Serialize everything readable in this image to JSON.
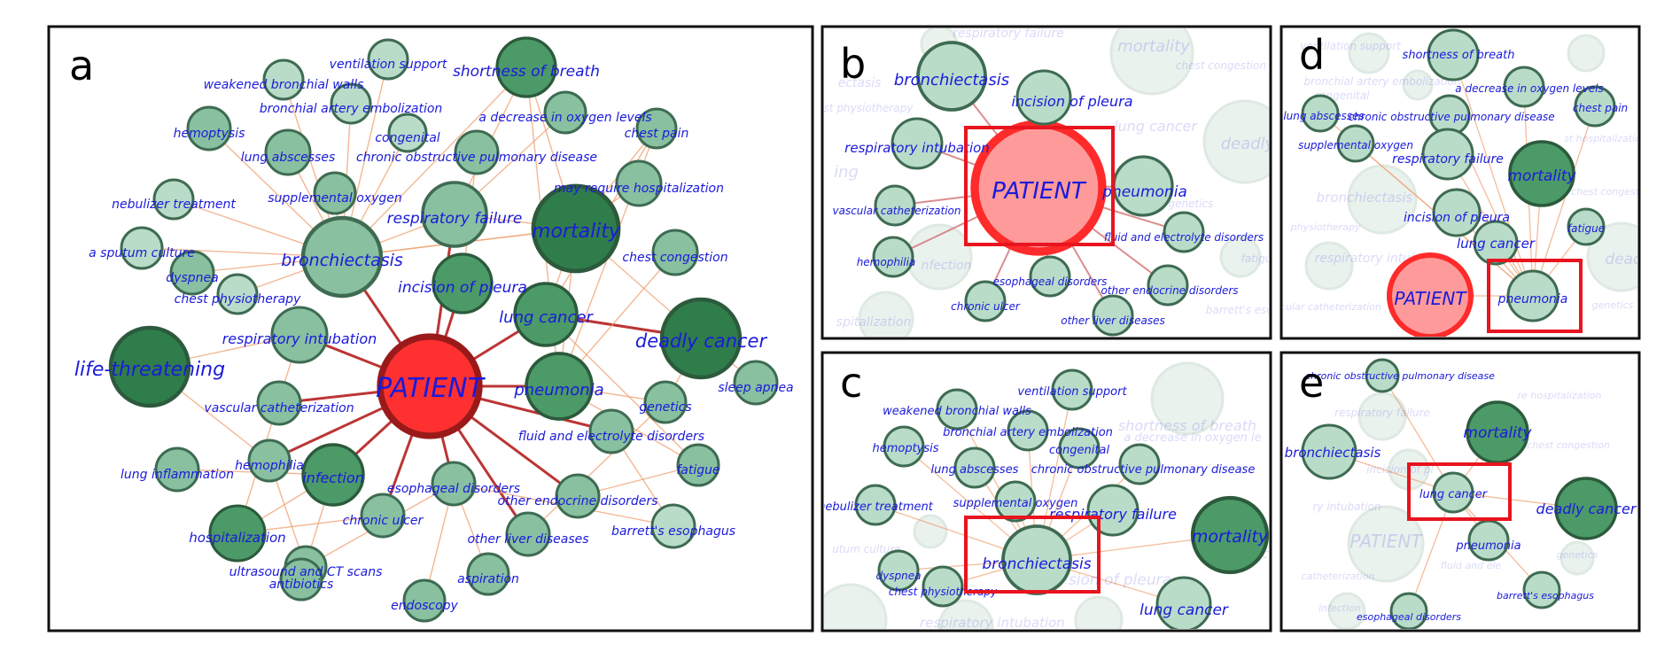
{
  "colors": {
    "label": "#1a1adb",
    "node_fill_light": "#b8dcc8",
    "node_fill_mid": "#88c0a0",
    "node_fill_dark": "#4b9a68",
    "node_fill_darkest": "#2f7d4a",
    "node_stroke": "#3e6b52",
    "patient_fill": "#ff3030",
    "patient_stroke": "#9a1a1a",
    "edge_strong": "#b52020",
    "edge_weak": "#f0a070",
    "highlight_box": "#e8141e"
  },
  "panels": [
    {
      "letter": "a",
      "nodes": [
        {
          "label": "PATIENT",
          "tone": "patient"
        },
        {
          "label": "life-threatening",
          "tone": "darkest"
        },
        {
          "label": "deadly cancer",
          "tone": "darkest"
        },
        {
          "label": "mortality",
          "tone": "darkest"
        },
        {
          "label": "bronchiectasis",
          "tone": "mid"
        },
        {
          "label": "shortness of breath",
          "tone": "dark"
        },
        {
          "label": "respiratory failure",
          "tone": "mid"
        },
        {
          "label": "incision of pleura",
          "tone": "dark"
        },
        {
          "label": "lung cancer",
          "tone": "dark"
        },
        {
          "label": "pneumonia",
          "tone": "dark"
        },
        {
          "label": "respiratory intubation",
          "tone": "mid"
        },
        {
          "label": "infection",
          "tone": "dark"
        },
        {
          "label": "hospitalization",
          "tone": "dark"
        },
        {
          "label": "ventilation support",
          "tone": "light"
        },
        {
          "label": "weakened bronchial walls",
          "tone": "light"
        },
        {
          "label": "bronchial artery embolization",
          "tone": "light"
        },
        {
          "label": "a decrease in oxygen levels",
          "tone": "mid"
        },
        {
          "label": "chest pain",
          "tone": "mid"
        },
        {
          "label": "hemoptysis",
          "tone": "mid"
        },
        {
          "label": "lung abscesses",
          "tone": "mid"
        },
        {
          "label": "congenital",
          "tone": "light"
        },
        {
          "label": "chronic obstructive pulmonary disease",
          "tone": "mid"
        },
        {
          "label": "may require hospitalization",
          "tone": "mid"
        },
        {
          "label": "nebulizer treatment",
          "tone": "light"
        },
        {
          "label": "supplemental oxygen",
          "tone": "mid"
        },
        {
          "label": "a sputum culture",
          "tone": "light"
        },
        {
          "label": "chest congestion",
          "tone": "mid"
        },
        {
          "label": "dyspnea",
          "tone": "mid"
        },
        {
          "label": "chest physiotherapy",
          "tone": "light"
        },
        {
          "label": "sleep apnea",
          "tone": "mid"
        },
        {
          "label": "genetics",
          "tone": "mid"
        },
        {
          "label": "vascular catheterization",
          "tone": "mid"
        },
        {
          "label": "fluid and electrolyte disorders",
          "tone": "mid"
        },
        {
          "label": "fatigue",
          "tone": "mid"
        },
        {
          "label": "lung inflammation",
          "tone": "mid"
        },
        {
          "label": "hemophilia",
          "tone": "mid"
        },
        {
          "label": "esophageal disorders",
          "tone": "mid"
        },
        {
          "label": "other endocrine disorders",
          "tone": "mid"
        },
        {
          "label": "chronic ulcer",
          "tone": "mid"
        },
        {
          "label": "barrett's esophagus",
          "tone": "light"
        },
        {
          "label": "other liver diseases",
          "tone": "mid"
        },
        {
          "label": "ultrasound and CT scans",
          "tone": "mid"
        },
        {
          "label": "antibiotics",
          "tone": "mid"
        },
        {
          "label": "aspiration",
          "tone": "mid"
        },
        {
          "label": "endoscopy",
          "tone": "mid"
        }
      ]
    },
    {
      "letter": "b",
      "highlight": "PATIENT",
      "nodes": [
        {
          "label": "PATIENT",
          "tone": "patient"
        },
        {
          "label": "bronchiectasis",
          "tone": "light"
        },
        {
          "label": "incision of pleura",
          "tone": "light"
        },
        {
          "label": "respiratory intubation",
          "tone": "light"
        },
        {
          "label": "pneumonia",
          "tone": "light"
        },
        {
          "label": "vascular catheterization",
          "tone": "light"
        },
        {
          "label": "fluid and electrolyte disorders",
          "tone": "light"
        },
        {
          "label": "hemophilia",
          "tone": "light"
        },
        {
          "label": "esophageal disorders",
          "tone": "light"
        },
        {
          "label": "other endocrine disorders",
          "tone": "light"
        },
        {
          "label": "chronic ulcer",
          "tone": "light"
        },
        {
          "label": "other liver diseases",
          "tone": "light"
        }
      ],
      "faded": [
        "respiratory failure",
        "mortality",
        "lung cancer",
        "deadly",
        "chest congestion",
        "genetics",
        "fatigu",
        "barrett's esopha",
        "ing",
        "nfection",
        "spitalization",
        "st physiotherapy",
        "ectasis"
      ]
    },
    {
      "letter": "c",
      "highlight": "bronchiectasis",
      "nodes": [
        {
          "label": "bronchiectasis",
          "tone": "light"
        },
        {
          "label": "ventilation support",
          "tone": "light"
        },
        {
          "label": "weakened bronchial walls",
          "tone": "light"
        },
        {
          "label": "bronchial artery embolization",
          "tone": "light"
        },
        {
          "label": "hemoptysis",
          "tone": "light"
        },
        {
          "label": "congenital",
          "tone": "light"
        },
        {
          "label": "lung abscesses",
          "tone": "light"
        },
        {
          "label": "chronic obstructive pulmonary disease",
          "tone": "light"
        },
        {
          "label": "supplemental oxygen",
          "tone": "light"
        },
        {
          "label": "nebulizer treatment",
          "tone": "light"
        },
        {
          "label": "respiratory failure",
          "tone": "light"
        },
        {
          "label": "mortality",
          "tone": "dark"
        },
        {
          "label": "dyspnea",
          "tone": "light"
        },
        {
          "label": "chest physiotherapy",
          "tone": "light"
        },
        {
          "label": "lung cancer",
          "tone": "light"
        }
      ],
      "faded": [
        "shortness of breath",
        "a decrease in oxygen le",
        "sion of pleura",
        "respiratory intubation",
        "utum culture",
        "c"
      ]
    },
    {
      "letter": "d",
      "highlight": "pneumonia",
      "nodes": [
        {
          "label": "shortness of breath",
          "tone": "light"
        },
        {
          "label": "a decrease in oxygen levels",
          "tone": "light"
        },
        {
          "label": "chest pain",
          "tone": "light"
        },
        {
          "label": "lung abscesses",
          "tone": "light"
        },
        {
          "label": "chronic obstructive pulmonary disease",
          "tone": "light"
        },
        {
          "label": "supplemental oxygen",
          "tone": "light"
        },
        {
          "label": "respiratory failure",
          "tone": "light"
        },
        {
          "label": "mortality",
          "tone": "dark"
        },
        {
          "label": "incision of pleura",
          "tone": "light"
        },
        {
          "label": "fatigue",
          "tone": "light"
        },
        {
          "label": "lung cancer",
          "tone": "light"
        },
        {
          "label": "PATIENT",
          "tone": "patient"
        },
        {
          "label": "pneumonia",
          "tone": "light"
        }
      ],
      "faded": [
        "ventilation support",
        "bronchial artery embolization",
        "congenital",
        "bronchiectasis",
        "st hospitalization",
        "chest congestion",
        "physiotherapy",
        "respiratory intubation",
        "deadly",
        "cular catheterization",
        "genetics"
      ]
    },
    {
      "letter": "e",
      "highlight": "lung cancer",
      "nodes": [
        {
          "label": "chronic obstructive pulmonary disease",
          "tone": "light"
        },
        {
          "label": "mortality",
          "tone": "dark"
        },
        {
          "label": "bronchiectasis",
          "tone": "light"
        },
        {
          "label": "lung cancer",
          "tone": "light"
        },
        {
          "label": "deadly cancer",
          "tone": "dark"
        },
        {
          "label": "pneumonia",
          "tone": "light"
        },
        {
          "label": "barrett's esophagus",
          "tone": "light"
        },
        {
          "label": "esophageal disorders",
          "tone": "light"
        }
      ],
      "faded": [
        "PATIENT",
        "respiratory failure",
        "incision of pl",
        "re hospitalization",
        "chest congestion",
        "ry intubation",
        "catheterization",
        "genetics",
        "fluid and ele",
        "infection"
      ]
    }
  ]
}
